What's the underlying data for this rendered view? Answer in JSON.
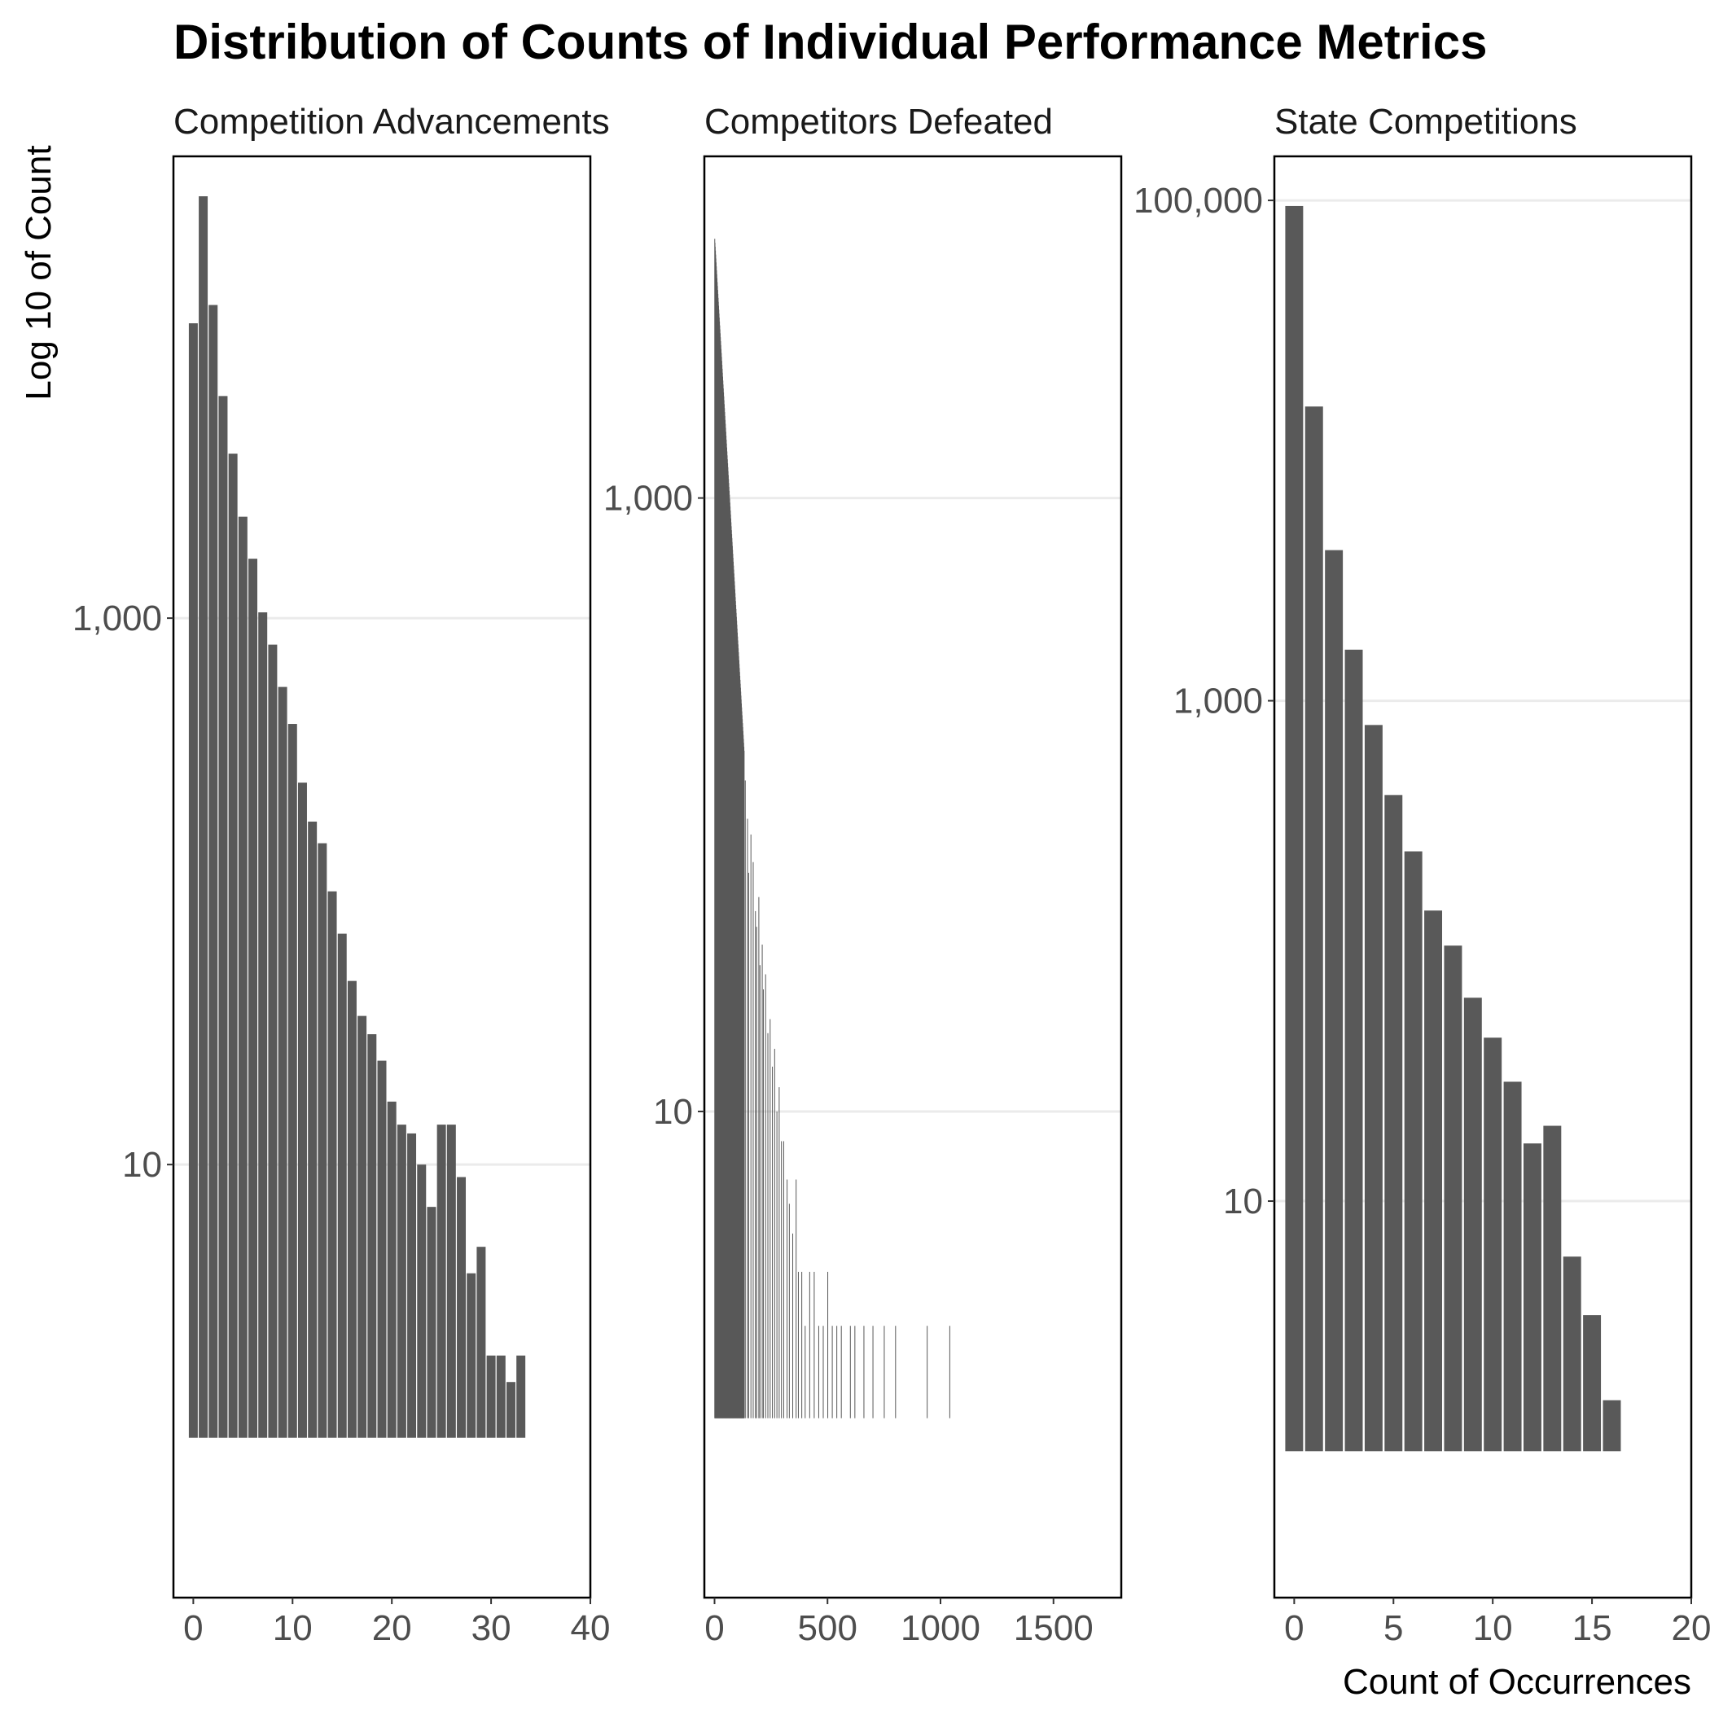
{
  "chart_data": {
    "type": "bar",
    "title": "Distribution of Counts of Individual Performance Metrics",
    "ylabel": "Log 10 of Count",
    "xlabel": "Count of Occurrences",
    "y_scale": "log10",
    "grid": "horizontal-major",
    "bar_color": "#595959",
    "panels": [
      {
        "title": "Competition Advancements",
        "xlim": [
          -2,
          40
        ],
        "x_ticks": [
          0,
          10,
          20,
          30,
          40
        ],
        "x_tick_labels": [
          "0",
          "10",
          "20",
          "30",
          "40"
        ],
        "ylim": [
          0.26,
          49000
        ],
        "y_ticks": [
          10,
          1000
        ],
        "y_tick_labels": [
          "10",
          "1,000"
        ],
        "bar_base": 1,
        "bar_width": 0.9,
        "x": [
          0,
          1,
          2,
          3,
          4,
          5,
          6,
          7,
          8,
          9,
          10,
          11,
          12,
          13,
          14,
          15,
          16,
          17,
          18,
          19,
          20,
          21,
          22,
          23,
          24,
          25,
          26,
          27,
          28,
          29,
          30,
          31,
          32,
          33
        ],
        "values": [
          12000,
          35000,
          14000,
          6500,
          4000,
          2350,
          1650,
          1050,
          800,
          560,
          410,
          250,
          180,
          150,
          100,
          70,
          47,
          35,
          30,
          24,
          17,
          14,
          13,
          10,
          7,
          14,
          14,
          9,
          4,
          5,
          2,
          2,
          1.6,
          2
        ]
      },
      {
        "title": "Competitors Defeated",
        "xlim": [
          -45,
          1800
        ],
        "x_ticks": [
          0,
          500,
          1000,
          1500
        ],
        "x_tick_labels": [
          "0",
          "500",
          "1000",
          "1500"
        ],
        "ylim": [
          0.26,
          13000
        ],
        "y_ticks": [
          10,
          1000
        ],
        "y_tick_labels": [
          "10",
          "1,000"
        ],
        "bar_base": 1,
        "bar_width": 1,
        "decay_min_x": 0,
        "decay_max_x": 130,
        "decay_start": 7000,
        "decay_end": 150,
        "tail_x": [
          135,
          145,
          150,
          160,
          170,
          180,
          185,
          195,
          200,
          210,
          215,
          225,
          235,
          245,
          255,
          265,
          275,
          285,
          295,
          305,
          320,
          330,
          345,
          360,
          370,
          385,
          400,
          420,
          440,
          460,
          480,
          500,
          520,
          540,
          560,
          600,
          620,
          660,
          700,
          750,
          800,
          940,
          1040
        ],
        "tail_values": [
          120,
          90,
          60,
          80,
          65,
          45,
          40,
          50,
          30,
          35,
          25,
          28,
          18,
          20,
          14,
          16,
          10,
          12,
          8,
          8,
          6,
          5,
          4,
          6,
          3,
          3,
          2,
          3,
          3,
          2,
          2,
          3,
          2,
          2,
          2,
          2,
          2,
          2,
          2,
          2,
          2,
          2,
          2
        ]
      },
      {
        "title": "State Competitions",
        "xlim": [
          -1,
          20
        ],
        "x_ticks": [
          0,
          5,
          10,
          15,
          20
        ],
        "x_tick_labels": [
          "0",
          "5",
          "10",
          "15",
          "20"
        ],
        "ylim": [
          0.26,
          150000
        ],
        "y_ticks": [
          10,
          1000,
          100000
        ],
        "y_tick_labels": [
          "10",
          "1,000",
          "100,000"
        ],
        "bar_base": 1,
        "bar_width": 0.9,
        "x": [
          0,
          1,
          2,
          3,
          4,
          5,
          6,
          7,
          8,
          9,
          10,
          11,
          12,
          13,
          14,
          15,
          16,
          17,
          19
        ],
        "values": [
          95000,
          15000,
          4000,
          1600,
          800,
          420,
          250,
          145,
          105,
          65,
          45,
          30,
          17,
          20,
          6,
          3.5,
          1.6,
          1,
          1
        ]
      }
    ]
  }
}
